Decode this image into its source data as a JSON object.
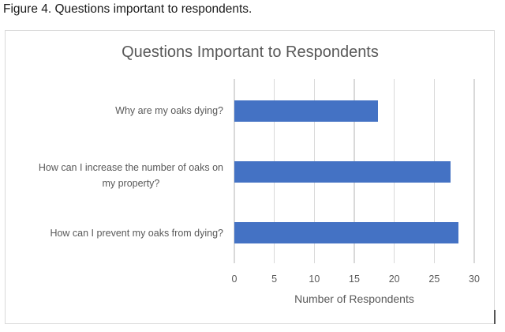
{
  "figure": {
    "caption": "Figure 4. Questions important to respondents."
  },
  "chart_data": {
    "type": "bar",
    "orientation": "horizontal",
    "title": "Questions Important to Respondents",
    "xlabel": "Number of Respondents",
    "ylabel": "",
    "categories": [
      "Why are my oaks dying?",
      "How can I increase the number of oaks on my property?",
      "How can I prevent my oaks from dying?"
    ],
    "values": [
      18,
      27,
      28
    ],
    "xlim": [
      0,
      30
    ],
    "x_ticks": [
      "0",
      "5",
      "10",
      "15",
      "20",
      "25",
      "30"
    ],
    "grid": "vertical",
    "legend": null,
    "bar_color": "#4472c4"
  },
  "labels": {
    "cat0_line1": "Why are my oaks dying?",
    "cat1_line1": "How can I increase the number of oaks on",
    "cat1_line2": "my property?",
    "cat2_line1": "How can I prevent my oaks from dying?"
  }
}
